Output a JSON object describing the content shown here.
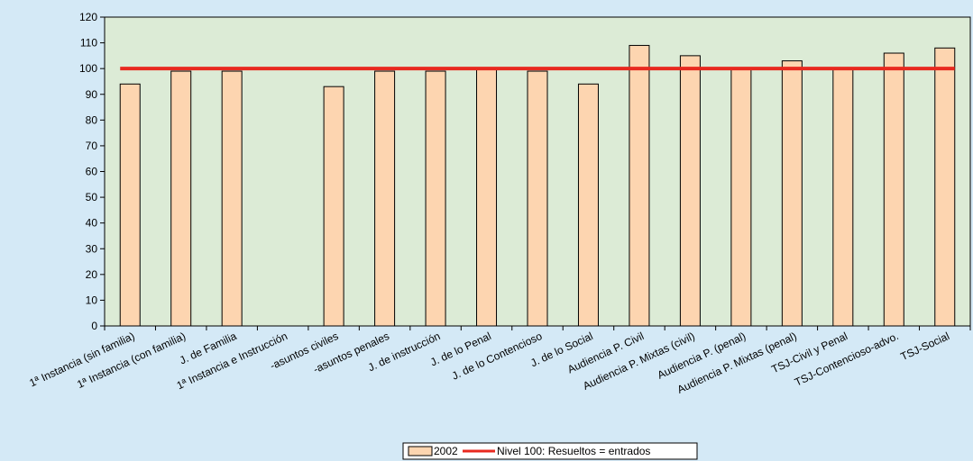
{
  "chart_data": {
    "type": "bar",
    "categories": [
      "1ª Instancia (sin familia)",
      "1ª Instancia (con familia)",
      "J. de Familia",
      "1ª Instancia e Instrucción",
      "-asuntos civiles",
      "-asuntos penales",
      "J. de instrucción",
      "J. de lo Penal",
      "J. de lo Contencioso",
      "J. de lo Social",
      "Audiencia P. Civil",
      "Audiencia P. Mixtas (civil)",
      "Audiencia P. (penal)",
      "Audiencia P. Mixtas (penal)",
      "TSJ-Civil y Penal",
      "TSJ-Contencioso-advo.",
      "TSJ-Social"
    ],
    "series": [
      {
        "name": "2002",
        "values": [
          94,
          99,
          99,
          null,
          93,
          99,
          99,
          100,
          99,
          94,
          109,
          105,
          100,
          103,
          100,
          106,
          108
        ]
      }
    ],
    "reference_line": {
      "name": "Nivel 100: Resueltos = entrados",
      "value": 100
    },
    "ylim": [
      0,
      120
    ],
    "yticks": [
      0,
      10,
      20,
      30,
      40,
      50,
      60,
      70,
      80,
      90,
      100,
      110,
      120
    ],
    "grid": false,
    "legend_position": "bottom-center",
    "colors": {
      "bar_fill": "#fdd5b0",
      "bar_stroke": "#000000",
      "plot_bg": "#dcebd6",
      "page_bg": "#d4e9f6",
      "reference_line": "#e8291f"
    }
  }
}
